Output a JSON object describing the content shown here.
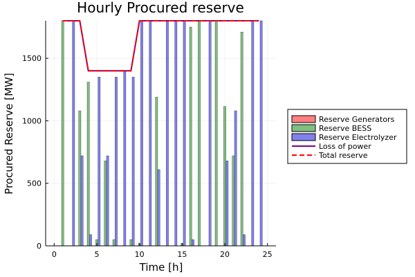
{
  "chart_data": {
    "type": "bar",
    "title": "Hourly Procured reserve",
    "xlabel": "Time [h]",
    "ylabel": "Procured Reserve [MW]",
    "xlim": [
      -1,
      26
    ],
    "ylim": [
      0,
      1800
    ],
    "xticks": [
      0,
      5,
      10,
      15,
      20,
      25
    ],
    "yticks": [
      0,
      500,
      1000,
      1500
    ],
    "grid": true,
    "legend_position": "outside-right",
    "hours": [
      1,
      2,
      3,
      4,
      5,
      6,
      7,
      8,
      9,
      10,
      11,
      12,
      13,
      14,
      15,
      16,
      17,
      18,
      19,
      20,
      21,
      22,
      23,
      24
    ],
    "series": [
      {
        "name": "Reserve Generators",
        "kind": "bar",
        "color": "#ff8080",
        "values": [
          0,
          0,
          0,
          0,
          0,
          0,
          0,
          0,
          0,
          0,
          0,
          0,
          0,
          0,
          0,
          0,
          0,
          0,
          0,
          0,
          0,
          0,
          0,
          0
        ]
      },
      {
        "name": "Reserve BESS",
        "kind": "bar",
        "color": "#7fbf7f",
        "values": [
          1800,
          0,
          1080,
          1310,
          50,
          680,
          50,
          0,
          50,
          20,
          0,
          1190,
          0,
          0,
          20,
          1750,
          1800,
          0,
          1800,
          1115,
          720,
          1710,
          0,
          0
        ]
      },
      {
        "name": "Reserve Electrolyzer",
        "kind": "bar",
        "color": "#8080ef",
        "values": [
          0,
          1800,
          720,
          90,
          1350,
          720,
          1350,
          1400,
          1350,
          1800,
          1800,
          610,
          1800,
          1800,
          1800,
          50,
          0,
          1800,
          0,
          680,
          1080,
          90,
          1800,
          1800
        ]
      },
      {
        "name": "Loss of power",
        "kind": "line",
        "color": "#800080",
        "values": [
          1800,
          1800,
          1800,
          1400,
          1400,
          1400,
          1400,
          1400,
          1400,
          1800,
          1800,
          1800,
          1800,
          1800,
          1800,
          1800,
          1800,
          1800,
          1800,
          1800,
          1800,
          1800,
          1800,
          1800
        ]
      },
      {
        "name": "Total reserve",
        "kind": "dashed-line",
        "color": "#ff0000",
        "values": [
          1800,
          1800,
          1800,
          1400,
          1400,
          1400,
          1400,
          1400,
          1400,
          1800,
          1800,
          1800,
          1800,
          1800,
          1800,
          1800,
          1800,
          1800,
          1800,
          1800,
          1800,
          1800,
          1800,
          1800
        ]
      }
    ]
  }
}
